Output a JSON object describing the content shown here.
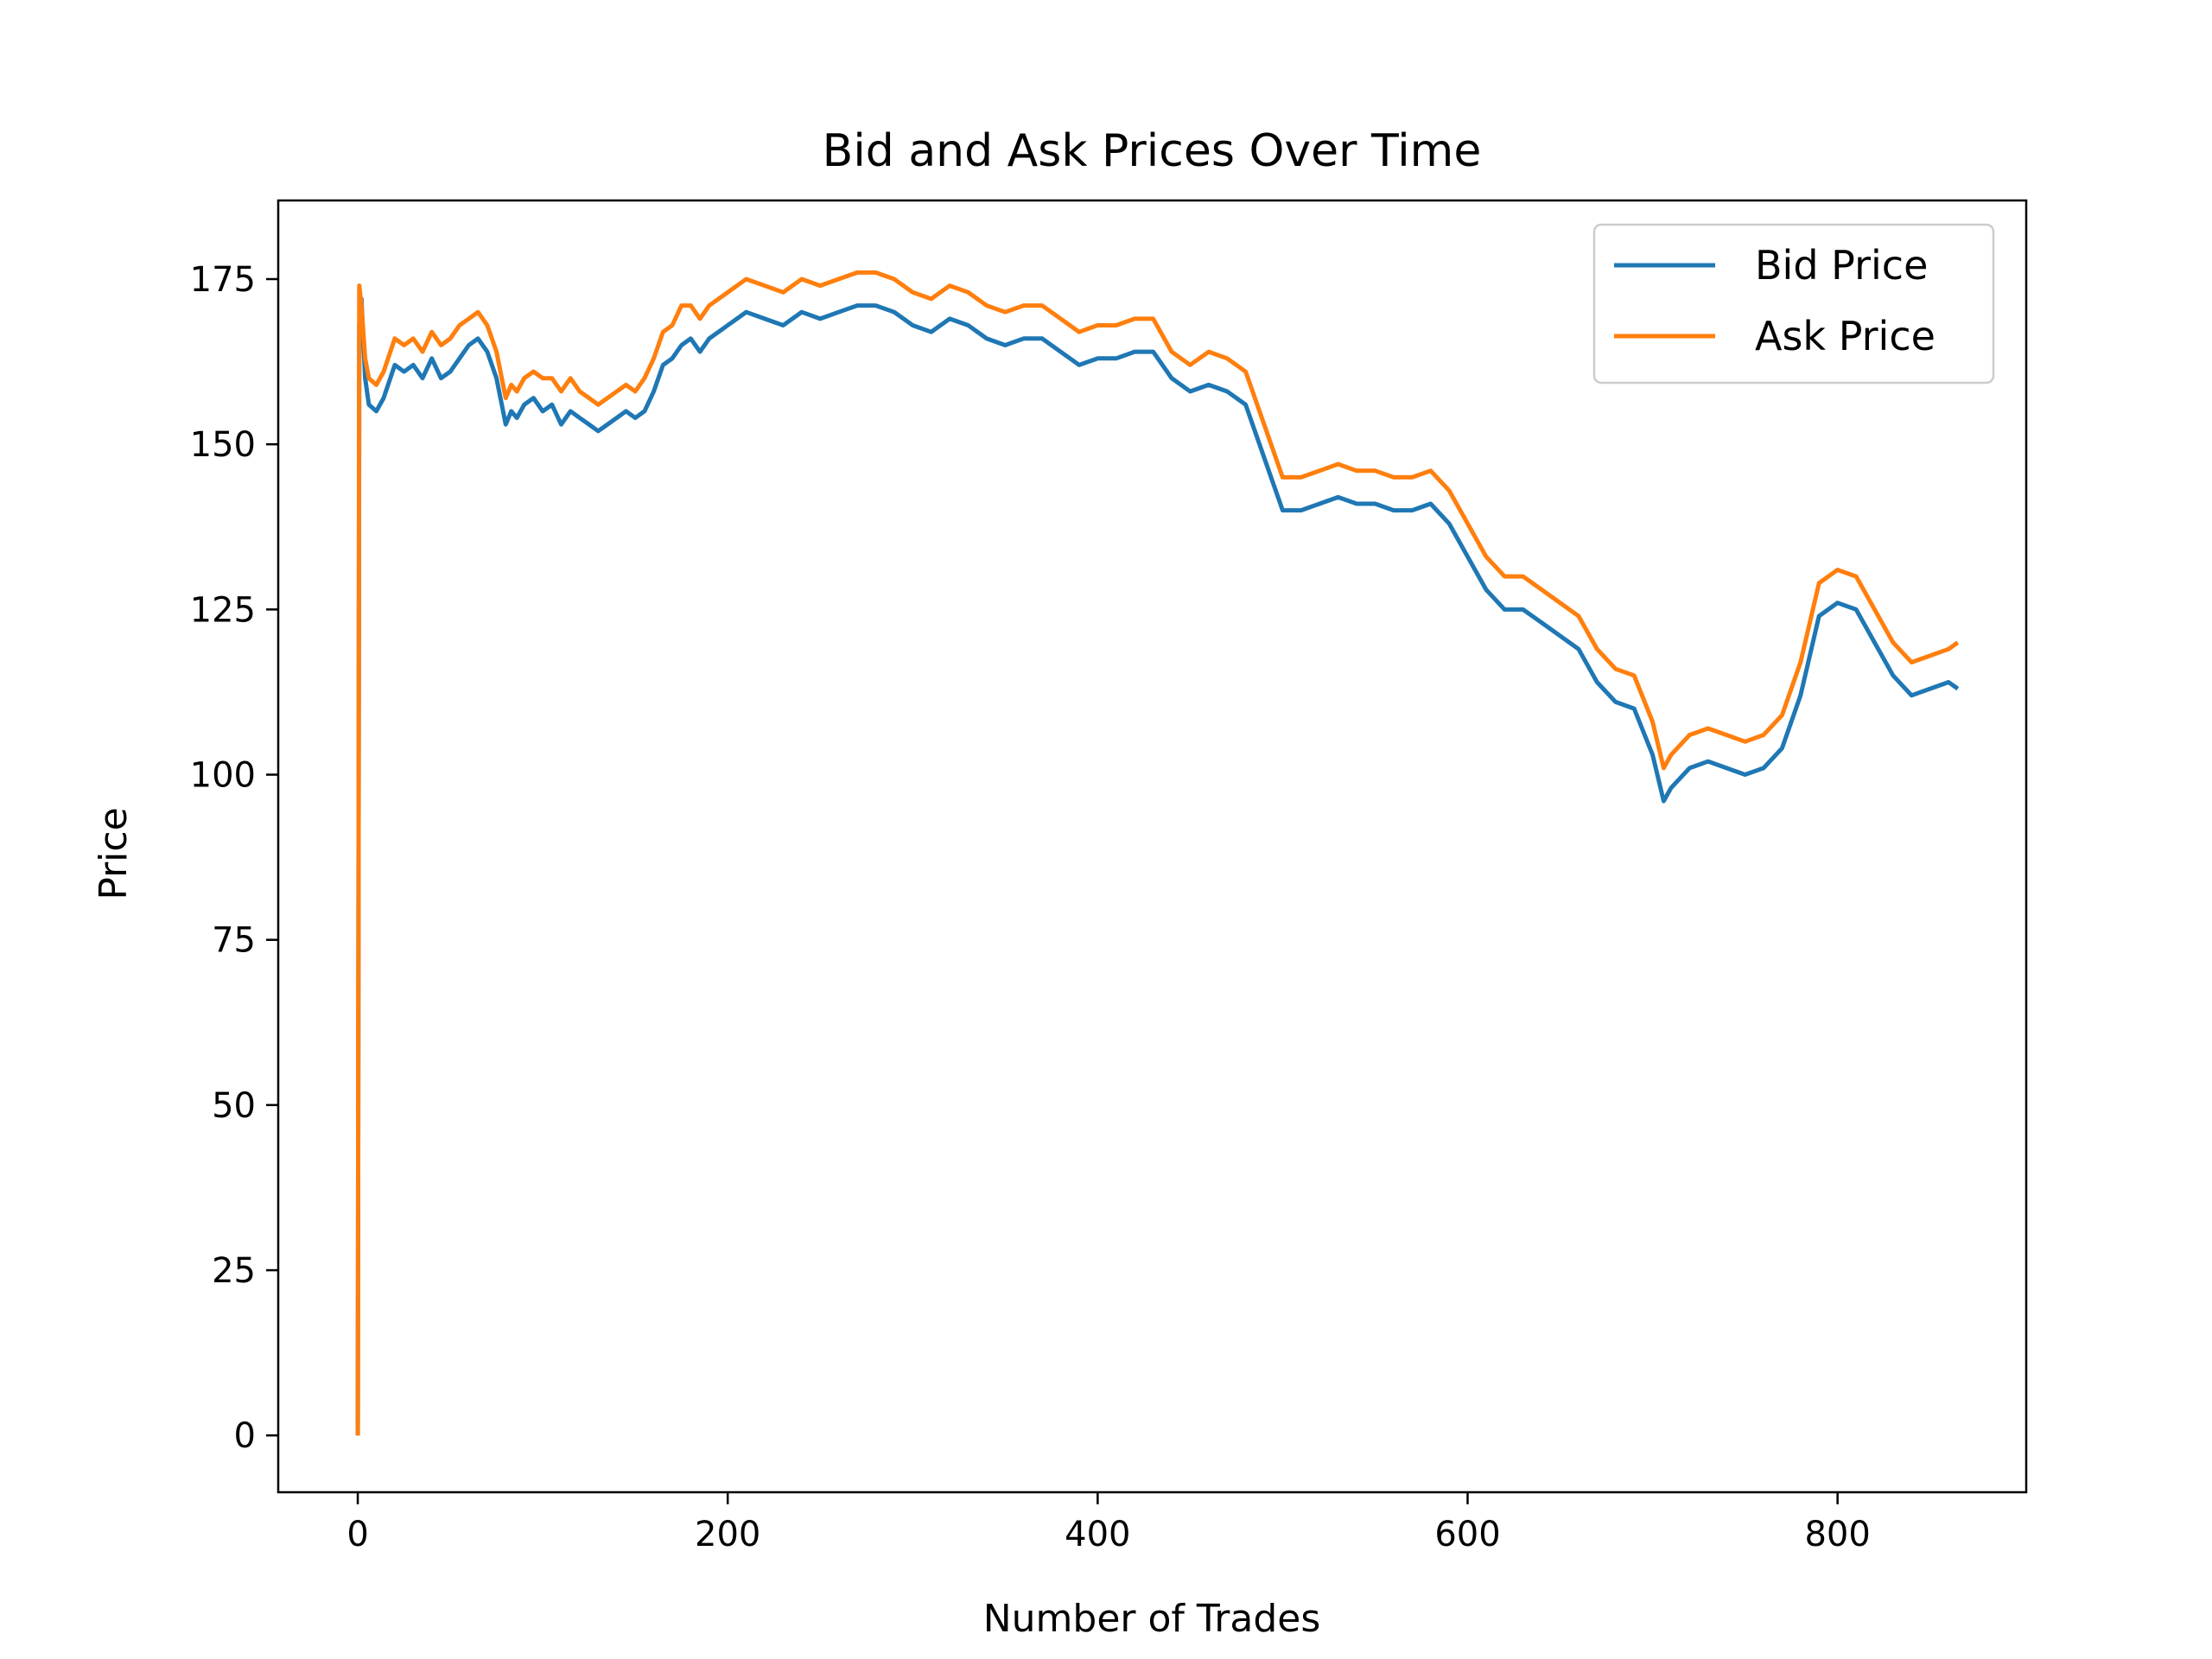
{
  "chart_data": {
    "type": "line",
    "title": "Bid and Ask Prices Over Time",
    "xlabel": "Number of Trades",
    "ylabel": "Price",
    "xlim": [
      -43,
      902
    ],
    "ylim": [
      -8.6,
      186.9
    ],
    "xticks": [
      0,
      200,
      400,
      600,
      800
    ],
    "yticks": [
      0,
      25,
      50,
      75,
      100,
      125,
      150,
      175
    ],
    "legend_position": "top-right",
    "grid": false,
    "series": [
      {
        "name": "Bid Price",
        "color": "#1f77b4",
        "x": [
          0,
          0.8,
          2,
          4,
          6,
          10,
          14,
          20,
          25,
          30,
          35,
          40,
          45,
          50,
          55,
          60,
          65,
          70,
          75,
          80,
          83,
          86,
          90,
          95,
          100,
          105,
          110,
          115,
          120,
          125,
          130,
          135,
          140,
          145,
          150,
          155,
          160,
          165,
          170,
          175,
          180,
          185,
          190,
          200,
          210,
          220,
          230,
          240,
          250,
          260,
          270,
          280,
          290,
          300,
          310,
          320,
          330,
          340,
          350,
          360,
          370,
          380,
          390,
          400,
          410,
          420,
          430,
          440,
          450,
          460,
          470,
          480,
          490,
          500,
          510,
          520,
          530,
          540,
          550,
          560,
          570,
          580,
          590,
          600,
          610,
          620,
          630,
          640,
          650,
          660,
          670,
          680,
          690,
          700,
          706,
          710,
          720,
          730,
          740,
          750,
          760,
          770,
          780,
          790,
          800,
          810,
          820,
          830,
          840,
          850,
          860,
          865
        ],
        "y": [
          0,
          168,
          172,
          160,
          156,
          155,
          157,
          162,
          161,
          162,
          160,
          163,
          160,
          161,
          163,
          165,
          166,
          164,
          160,
          153,
          155,
          154,
          156,
          157,
          155,
          156,
          153,
          155,
          154,
          153,
          152,
          153,
          154,
          155,
          154,
          155,
          158,
          162,
          163,
          165,
          166,
          164,
          166,
          168,
          170,
          169,
          168,
          170,
          169,
          170,
          171,
          171,
          170,
          168,
          167,
          169,
          168,
          166,
          165,
          166,
          166,
          164,
          162,
          163,
          163,
          164,
          164,
          160,
          158,
          159,
          158,
          156,
          148,
          140,
          140,
          141,
          142,
          141,
          141,
          140,
          140,
          141,
          138,
          133,
          128,
          125,
          125,
          123,
          121,
          119,
          114,
          111,
          110,
          103,
          96,
          98,
          101,
          102,
          101,
          100,
          101,
          104,
          112,
          124,
          126,
          125,
          120,
          115,
          112,
          113,
          114,
          113
        ]
      },
      {
        "name": "Ask Price",
        "color": "#ff7f0e",
        "x": [
          0,
          0.8,
          2,
          4,
          6,
          10,
          14,
          20,
          25,
          30,
          35,
          40,
          45,
          50,
          55,
          60,
          65,
          70,
          75,
          80,
          83,
          86,
          90,
          95,
          100,
          105,
          110,
          115,
          120,
          125,
          130,
          135,
          140,
          145,
          150,
          155,
          160,
          165,
          170,
          175,
          180,
          185,
          190,
          200,
          210,
          220,
          230,
          240,
          250,
          260,
          270,
          280,
          290,
          300,
          310,
          320,
          330,
          340,
          350,
          360,
          370,
          380,
          390,
          400,
          410,
          420,
          430,
          440,
          450,
          460,
          470,
          480,
          490,
          500,
          510,
          520,
          530,
          540,
          550,
          560,
          570,
          580,
          590,
          600,
          610,
          620,
          630,
          640,
          650,
          660,
          670,
          680,
          690,
          700,
          706,
          710,
          720,
          730,
          740,
          750,
          760,
          770,
          780,
          790,
          800,
          810,
          820,
          830,
          840,
          850,
          860,
          865
        ],
        "y": [
          0,
          174,
          171,
          163,
          160,
          159,
          161,
          166,
          165,
          166,
          164,
          167,
          165,
          166,
          168,
          169,
          170,
          168,
          164,
          157,
          159,
          158,
          160,
          161,
          160,
          160,
          158,
          160,
          158,
          157,
          156,
          157,
          158,
          159,
          158,
          160,
          163,
          167,
          168,
          171,
          171,
          169,
          171,
          173,
          175,
          174,
          173,
          175,
          174,
          175,
          176,
          176,
          175,
          173,
          172,
          174,
          173,
          171,
          170,
          171,
          171,
          169,
          167,
          168,
          168,
          169,
          169,
          164,
          162,
          164,
          163,
          161,
          153,
          145,
          145,
          146,
          147,
          146,
          146,
          145,
          145,
          146,
          143,
          138,
          133,
          130,
          130,
          128,
          126,
          124,
          119,
          116,
          115,
          108,
          101,
          103,
          106,
          107,
          106,
          105,
          106,
          109,
          117,
          129,
          131,
          130,
          125,
          120,
          117,
          118,
          119,
          120
        ]
      }
    ]
  }
}
